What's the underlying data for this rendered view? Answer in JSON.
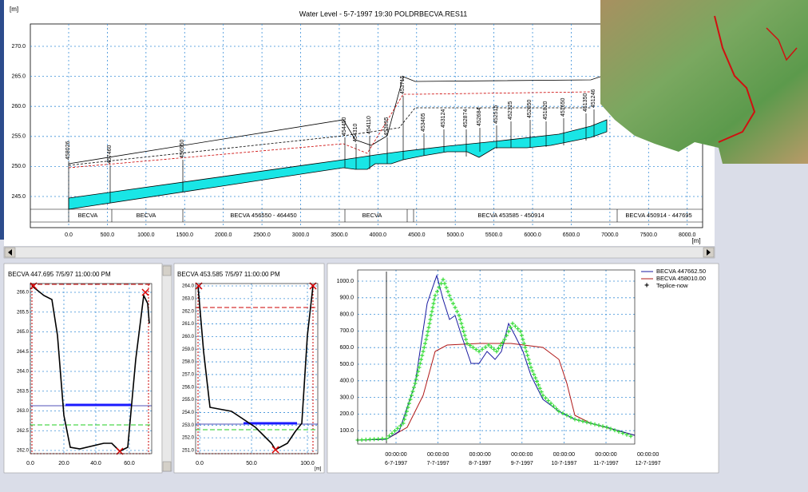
{
  "top_chart": {
    "unit_label": "[m]",
    "title": "Water Level - 5-7-1997 19:30 POLDRBECVA.RES11",
    "yticks": [
      "270.0",
      "265.0",
      "260.0",
      "255.0",
      "250.0",
      "245.0"
    ],
    "xticks": [
      "0.0",
      "500.0",
      "1000.0",
      "1500.0",
      "2000.0",
      "2500.0",
      "3000.0",
      "3500.0",
      "4000.0",
      "4500.0",
      "5000.0",
      "5500.0",
      "6000.0",
      "6500.0",
      "7000.0",
      "7500.0",
      "8000.0"
    ],
    "x_unit": "[m]",
    "branches": [
      "BECVA",
      "BECVA",
      "BECVA 456550 - 464450",
      "BECVA",
      "BECVA 453585 - 450914",
      "BECVA 450914 - 447695"
    ],
    "chainages": [
      "458026",
      "457460",
      "456550",
      "454450",
      "454310",
      "454110",
      "453895",
      "453715",
      "453405",
      "453124",
      "452874",
      "452684",
      "452515",
      "452325",
      "452050",
      "451820",
      "451650",
      "451350",
      "451246"
    ]
  },
  "cross_sections": [
    {
      "title": "BECVA 447.695 7/5/97 11:00:00 PM",
      "yticks": [
        "266.0",
        "265.5",
        "265.0",
        "264.5",
        "264.0",
        "263.5",
        "263.0",
        "262.5",
        "262.0"
      ],
      "xticks": [
        "0.0",
        "20.0",
        "40.0",
        "60.0"
      ]
    },
    {
      "title": "BECVA 453.585 7/5/97 11:00:00 PM",
      "yticks": [
        "264.0",
        "263.0",
        "262.0",
        "261.0",
        "260.0",
        "259.0",
        "258.0",
        "257.0",
        "256.0",
        "255.0",
        "254.0",
        "253.0",
        "252.0",
        "251.0"
      ],
      "xticks": [
        "0.0",
        "50.0",
        "100.0"
      ],
      "x_unit": "[m]"
    }
  ],
  "time_series": {
    "yticks": [
      "1000.0",
      "900.0",
      "800.0",
      "700.0",
      "600.0",
      "500.0",
      "400.0",
      "300.0",
      "200.0",
      "100.0"
    ],
    "xticks": [
      {
        "time": "00:00:00",
        "date": "6-7-1997"
      },
      {
        "time": "00:00:00",
        "date": "7-7-1997"
      },
      {
        "time": "00:00:00",
        "date": "8-7-1997"
      },
      {
        "time": "00:00:00",
        "date": "9-7-1997"
      },
      {
        "time": "00:00:00",
        "date": "10-7-1997"
      },
      {
        "time": "00:00:00",
        "date": "11-7-1997"
      },
      {
        "time": "00:00:00",
        "date": "12-7-1997"
      }
    ],
    "legend": [
      "BECVA 447662.50",
      "BECVA 458010.00",
      "Teplice-now"
    ]
  }
}
